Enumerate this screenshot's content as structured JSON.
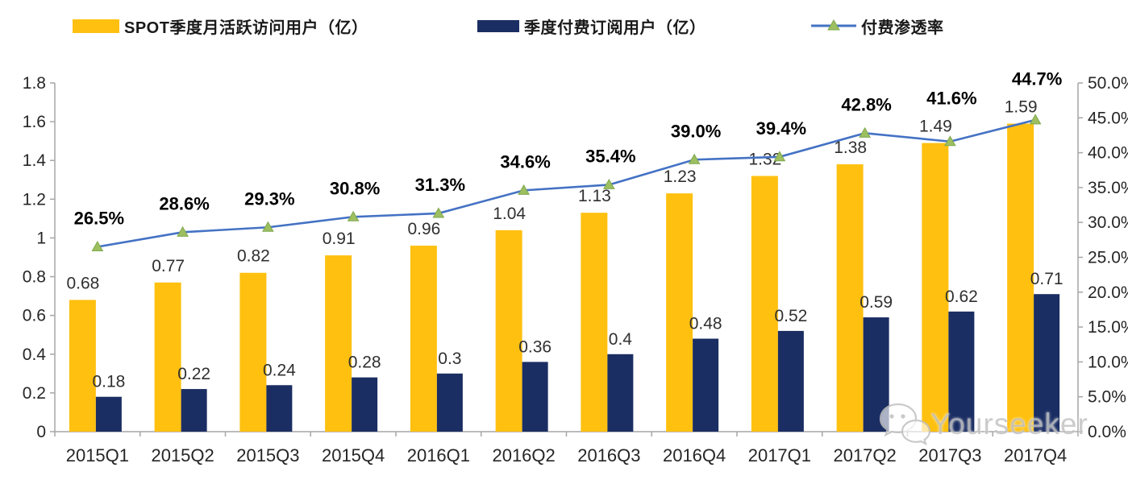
{
  "colors": {
    "mau_bar": "#FFC010",
    "subs_bar": "#1B2E63",
    "line": "#4472C4",
    "marker_fill": "#9DBF60",
    "marker_stroke": "#7FA84F",
    "axis": "#A6A6A6",
    "tick_text": "#262626",
    "value_label": "#303030",
    "pct_label": "#000000",
    "watermark": "#C4C4C4"
  },
  "legend": [
    {
      "label": "SPOT季度月活跃访问用户（亿）",
      "marker": "bar",
      "color": "#FFC010"
    },
    {
      "label": "季度付费订阅用户（亿）",
      "marker": "bar",
      "color": "#1B2E63"
    },
    {
      "label": "付费渗透率",
      "marker": "line-triangle",
      "color": "#4472C4"
    }
  ],
  "watermark": {
    "icon": "wechat-icon",
    "text": "Yourseeker"
  },
  "chart_data": {
    "type": "bar",
    "subtype": "grouped-bars-with-line-overlay",
    "categories": [
      "2015Q1",
      "2015Q2",
      "2015Q3",
      "2015Q4",
      "2016Q1",
      "2016Q2",
      "2016Q3",
      "2016Q4",
      "2017Q1",
      "2017Q2",
      "2017Q3",
      "2017Q4"
    ],
    "series": [
      {
        "name": "SPOT季度月活跃访问用户（亿）",
        "type": "bar",
        "axis": "left",
        "color": "#FFC010",
        "values": [
          0.68,
          0.77,
          0.82,
          0.91,
          0.96,
          1.04,
          1.13,
          1.23,
          1.32,
          1.38,
          1.49,
          1.59
        ],
        "labels": [
          "0.68",
          "0.77",
          "0.82",
          "0.91",
          "0.96",
          "1.04",
          "1.13",
          "1.23",
          "1.32",
          "1.38",
          "1.49",
          "1.59"
        ]
      },
      {
        "name": "季度付费订阅用户（亿）",
        "type": "bar",
        "axis": "left",
        "color": "#1B2E63",
        "values": [
          0.18,
          0.22,
          0.24,
          0.28,
          0.3,
          0.36,
          0.4,
          0.48,
          0.52,
          0.59,
          0.62,
          0.71
        ],
        "labels": [
          "0.18",
          "0.22",
          "0.24",
          "0.28",
          "0.3",
          "0.36",
          "0.4",
          "0.48",
          "0.52",
          "0.59",
          "0.62",
          "0.71"
        ]
      },
      {
        "name": "付费渗透率",
        "type": "line",
        "axis": "right",
        "color": "#4472C4",
        "marker": "triangle",
        "values": [
          26.5,
          28.6,
          29.3,
          30.8,
          31.3,
          34.6,
          35.4,
          39.0,
          39.4,
          42.8,
          41.6,
          44.7
        ],
        "labels": [
          "26.5%",
          "28.6%",
          "29.3%",
          "30.8%",
          "31.3%",
          "34.6%",
          "35.4%",
          "39.0%",
          "39.4%",
          "42.8%",
          "41.6%",
          "44.7%"
        ]
      }
    ],
    "left_axis": {
      "min": 0,
      "max": 1.8,
      "step": 0.2,
      "ticks": [
        "1.8",
        "1.6",
        "1.4",
        "1.2",
        "1",
        "0.8",
        "0.6",
        "0.4",
        "0.2",
        "0"
      ]
    },
    "right_axis": {
      "min": 0,
      "max": 50,
      "step": 5,
      "ticks": [
        "50.0%",
        "45.0%",
        "40.0%",
        "35.0%",
        "30.0%",
        "25.0%",
        "20.0%",
        "15.0%",
        "10.0%",
        "5.0%",
        "0.0%"
      ]
    },
    "grid": false,
    "legend_position": "top",
    "title": ""
  }
}
